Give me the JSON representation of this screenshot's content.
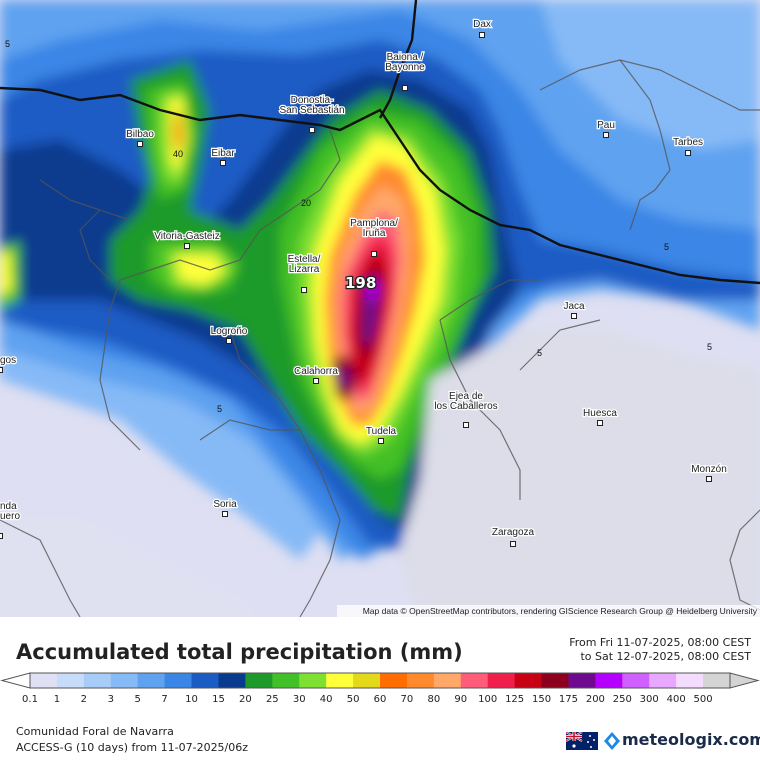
{
  "map": {
    "cities": [
      {
        "name": "Dax",
        "kind": "city"
      },
      {
        "name": "Baiona /\nBayonne",
        "kind": "city"
      },
      {
        "name": "Donostia-\nSan Sebastián",
        "kind": "city"
      },
      {
        "name": "Bilbao",
        "kind": "city"
      },
      {
        "name": "Eibar",
        "kind": "city"
      },
      {
        "name": "Pau",
        "kind": "city"
      },
      {
        "name": "Tarbes",
        "kind": "city"
      },
      {
        "name": "Vitoria-Gasteiz",
        "kind": "city"
      },
      {
        "name": "Pamplona/\nIruña",
        "kind": "city"
      },
      {
        "name": "Estella/\nLizarra",
        "kind": "city"
      },
      {
        "name": "Jaca",
        "kind": "city"
      },
      {
        "name": "Logroño",
        "kind": "city"
      },
      {
        "name": "gos",
        "kind": "city"
      },
      {
        "name": "Calahorra",
        "kind": "city"
      },
      {
        "name": "Ejea de\nlos Caballeros",
        "kind": "city"
      },
      {
        "name": "Huesca",
        "kind": "city"
      },
      {
        "name": "Tudela",
        "kind": "city"
      },
      {
        "name": "Monzón",
        "kind": "city"
      },
      {
        "name": "Soria",
        "kind": "city"
      },
      {
        "name": "nda\nuero",
        "kind": "city"
      },
      {
        "name": "Zaragoza",
        "kind": "city"
      }
    ],
    "contour_labels": [
      "5",
      "40",
      "20",
      "5",
      "5",
      "5",
      "5"
    ],
    "max_value": "198",
    "attribution": "Map data © OpenStreetMap contributors, rendering GIScience Research Group @ Heidelberg University"
  },
  "legend": {
    "title": "Accumulated total precipitation (mm)",
    "period_from": "From Fri 11-07-2025, 08:00 CEST",
    "period_to": "to Sat 12-07-2025, 08:00 CEST",
    "levels": [
      "0.1",
      "1",
      "2",
      "3",
      "5",
      "7",
      "10",
      "15",
      "20",
      "25",
      "30",
      "40",
      "50",
      "60",
      "70",
      "80",
      "90",
      "100",
      "125",
      "150",
      "175",
      "200",
      "250",
      "300",
      "400",
      "500"
    ],
    "colors": [
      "#e0e0f4",
      "#c6dcf8",
      "#a8ccf8",
      "#86baf6",
      "#5ea2f0",
      "#3a86e6",
      "#1a5cc4",
      "#0a3a8e",
      "#1e9a2a",
      "#42c028",
      "#7ee030",
      "#ffff3a",
      "#e4d81a",
      "#ff6c00",
      "#ff8a2e",
      "#ffa86a",
      "#ff5c7a",
      "#f01e4a",
      "#c80014",
      "#8c001e",
      "#6e0a8e",
      "#b400ff",
      "#d060ff",
      "#e8a8ff",
      "#f4dcff",
      "#d4d4d4"
    ]
  },
  "footer": {
    "region": "Comunidad Foral de Navarra",
    "model": "ACCESS-G (10 days) from 11-07-2025/06z",
    "brand": "meteologix.com"
  }
}
